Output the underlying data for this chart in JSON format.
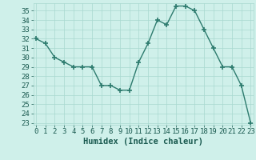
{
  "x": [
    0,
    1,
    2,
    3,
    4,
    5,
    6,
    7,
    8,
    9,
    10,
    11,
    12,
    13,
    14,
    15,
    16,
    17,
    18,
    19,
    20,
    21,
    22,
    23
  ],
  "y": [
    32,
    31.5,
    30,
    29.5,
    29,
    29,
    29,
    27,
    27,
    26.5,
    26.5,
    29.5,
    31.5,
    34,
    33.5,
    35.5,
    35.5,
    35,
    33,
    31,
    29,
    29,
    27,
    23
  ],
  "line_color": "#2d7b6e",
  "marker": "+",
  "marker_size": 4,
  "marker_linewidth": 1.2,
  "bg_color": "#cff0ea",
  "grid_color": "#a8d8d0",
  "xlabel": "Humidex (Indice chaleur)",
  "ylim_min": 22.8,
  "ylim_max": 35.8,
  "xlim_min": -0.3,
  "xlim_max": 23.3,
  "yticks": [
    23,
    24,
    25,
    26,
    27,
    28,
    29,
    30,
    31,
    32,
    33,
    34,
    35
  ],
  "xticks": [
    0,
    1,
    2,
    3,
    4,
    5,
    6,
    7,
    8,
    9,
    10,
    11,
    12,
    13,
    14,
    15,
    16,
    17,
    18,
    19,
    20,
    21,
    22,
    23
  ],
  "font_color": "#1a5a50",
  "xlabel_fontsize": 7.5,
  "tick_fontsize": 6.5,
  "linewidth": 1.0
}
